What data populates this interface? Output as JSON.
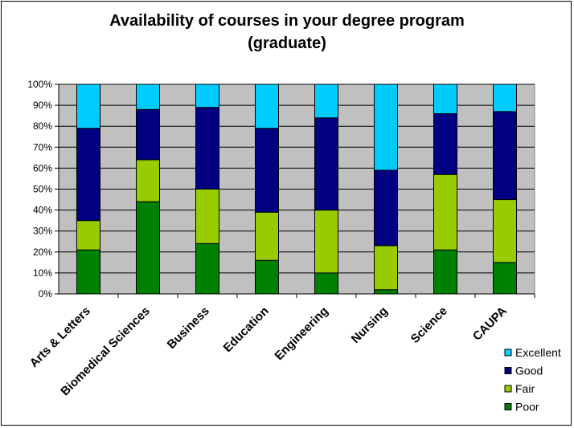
{
  "chart_data": {
    "type": "bar",
    "stacked": true,
    "title": "Availability of courses in your degree program",
    "subtitle": "(graduate)",
    "y_tick_labels": [
      "0%",
      "10%",
      "20%",
      "30%",
      "40%",
      "50%",
      "60%",
      "70%",
      "80%",
      "90%",
      "100%"
    ],
    "ylim": [
      0,
      100
    ],
    "grid": true,
    "legend_position": "bottom-right",
    "categories": [
      "Arts & Letters",
      "Biomedical Sciences",
      "Business",
      "Education",
      "Engineering",
      "Nursing",
      "Science",
      "CAUPA"
    ],
    "series": [
      {
        "name": "Poor",
        "color": "#008000",
        "values": [
          21,
          44,
          24,
          16,
          10,
          2,
          21,
          15
        ]
      },
      {
        "name": "Fair",
        "color": "#99CC00",
        "values": [
          14,
          20,
          26,
          23,
          30,
          21,
          36,
          30
        ]
      },
      {
        "name": "Good",
        "color": "#000080",
        "values": [
          44,
          24,
          39,
          40,
          44,
          36,
          29,
          42
        ]
      },
      {
        "name": "Excellent",
        "color": "#00CCFF",
        "values": [
          21,
          12,
          11,
          21,
          16,
          41,
          14,
          13
        ]
      }
    ],
    "plot_background": "#C0C0C0"
  }
}
